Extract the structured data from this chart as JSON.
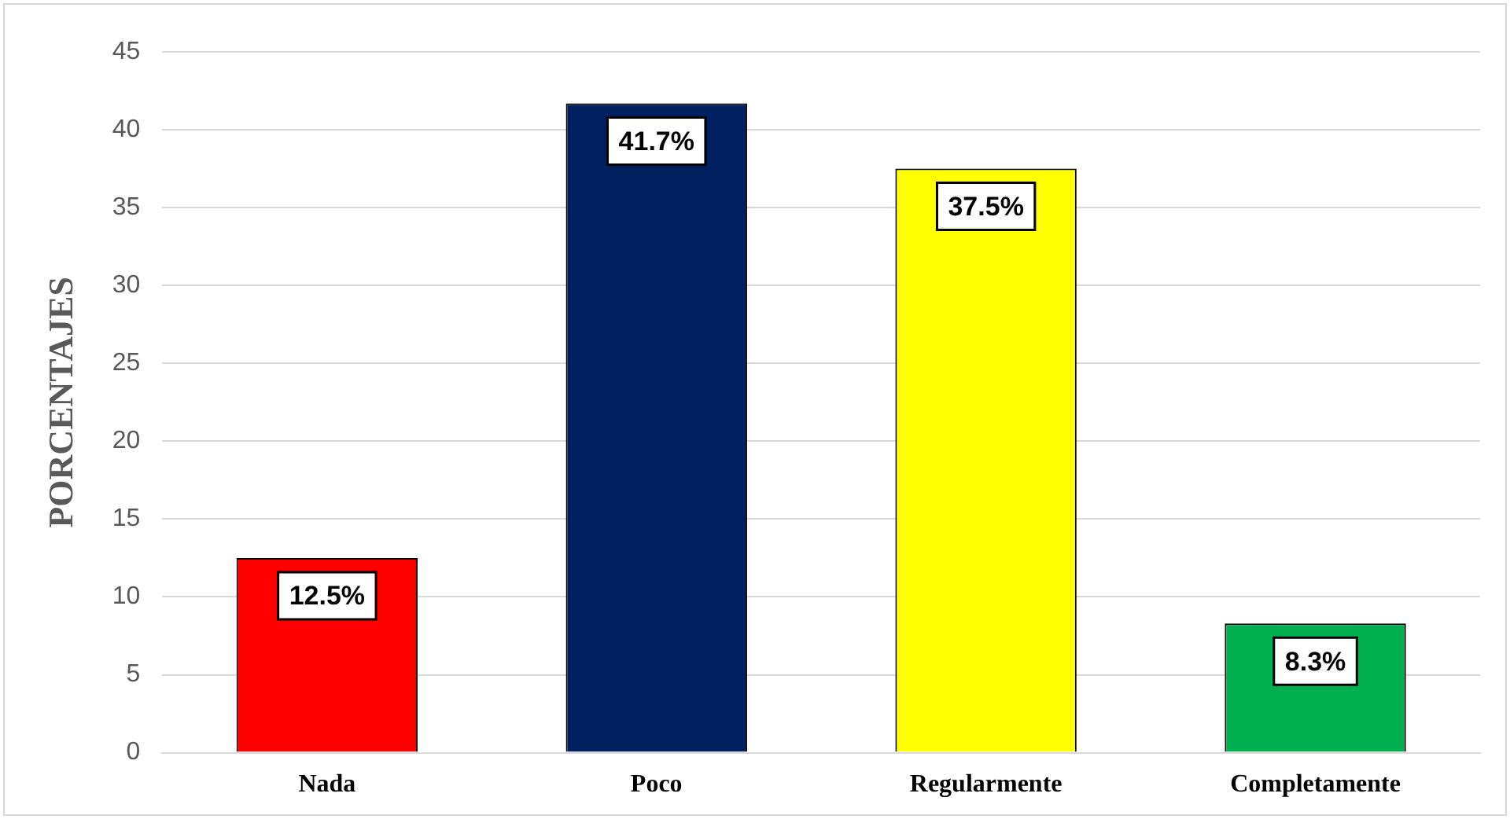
{
  "chart_data": {
    "type": "bar",
    "ylabel": "PORCENTAJES",
    "categories": [
      "Nada",
      "Poco",
      "Regularmente",
      "Completamente"
    ],
    "values": [
      12.5,
      41.7,
      37.5,
      8.3
    ],
    "colors": [
      "#ff0000",
      "#002060",
      "#ffff00",
      "#00b050"
    ],
    "value_labels": [
      "12.5%",
      "41.7%",
      "37.5%",
      "8.3%"
    ],
    "ylim": [
      0,
      45
    ],
    "yticks": [
      0,
      5,
      10,
      15,
      20,
      25,
      30,
      35,
      40,
      45
    ],
    "grid": "y"
  }
}
